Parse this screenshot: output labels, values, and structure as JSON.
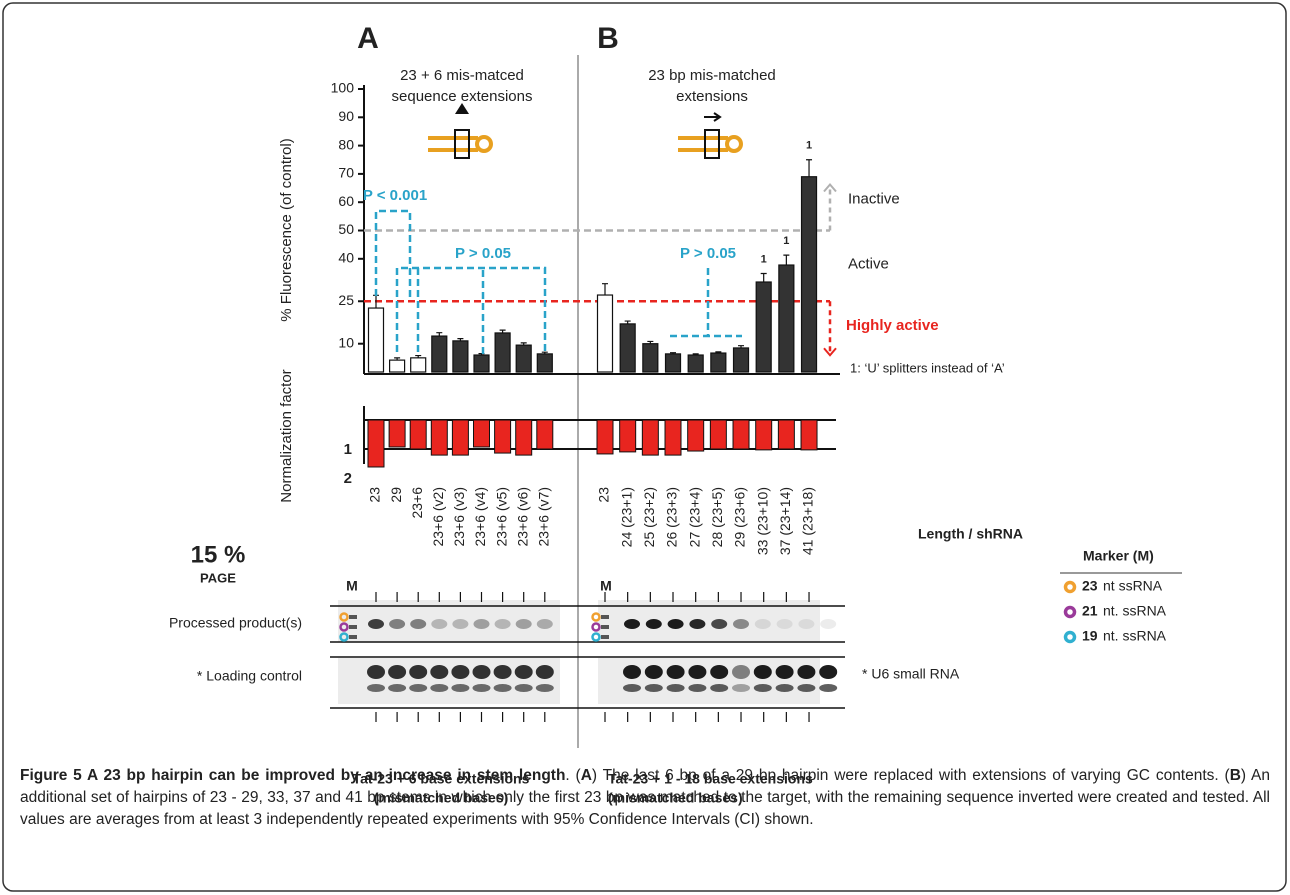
{
  "chart_data": [
    {
      "type": "bar",
      "panel": "A",
      "heading": [
        "23 + 6 mis-matced",
        "sequence extensions"
      ],
      "ylabel": "% Fluorescence (of control)",
      "categories": [
        "23",
        "29",
        "23+6",
        "23+6 (v2)",
        "23+6 (v3)",
        "23+6 (v4)",
        "23+6 (v5)",
        "23+6 (v6)",
        "23+6 (v7)"
      ],
      "values": [
        22.6,
        4.2,
        5,
        12.7,
        11,
        6,
        13.8,
        9.5,
        6.4
      ],
      "errors": [
        4.5,
        0.8,
        0.8,
        1.2,
        0.8,
        0.5,
        1,
        0.8,
        0.6
      ],
      "colors": [
        "#ffffff",
        "#ffffff",
        "#ffffff",
        "#333333",
        "#333333",
        "#333333",
        "#333333",
        "#333333",
        "#333333"
      ],
      "ylim": [
        0,
        100
      ],
      "yticks": [
        10,
        25,
        40,
        50,
        60,
        70,
        80,
        90,
        100
      ],
      "thresholds": [
        {
          "value": 50,
          "color": "#b0b0b0",
          "above": "Inactive",
          "below": "Active"
        },
        {
          "value": 25,
          "color": "#e8251f",
          "below": "Highly active"
        }
      ],
      "annotations": [
        "P < 0.001",
        "P > 0.05"
      ],
      "normalization": {
        "ylabel": "Normalization factor",
        "values": [
          1.62,
          0.93,
          1.0,
          1.21,
          1.21,
          0.93,
          1.14,
          1.21,
          1.0
        ],
        "color": "#e8251f",
        "ylim": [
          0,
          2
        ],
        "yticks": [
          1,
          2
        ],
        "tick_colors": [
          "#e8251f",
          "#222222"
        ]
      },
      "footer": [
        "Tat-23 + 6 base extensions",
        "(mismatched bases)"
      ]
    },
    {
      "type": "bar",
      "panel": "B",
      "heading": [
        "23 bp mis-matched",
        "extensions"
      ],
      "categories": [
        "23",
        "24 (23+1)",
        "25 (23+2)",
        "26 (23+3)",
        "27 (23+4)",
        "28 (23+5)",
        "29 (23+6)",
        "33 (23+10)",
        "37 (23+14)",
        "41 (23+18)"
      ],
      "values": [
        27.2,
        17,
        10,
        6.4,
        6,
        6.7,
        8.5,
        31.8,
        37.8,
        69
      ],
      "errors": [
        4,
        1,
        0.8,
        0.4,
        0.4,
        0.4,
        0.8,
        3,
        3.5,
        6
      ],
      "colors": [
        "#ffffff",
        "#333333",
        "#333333",
        "#333333",
        "#333333",
        "#333333",
        "#333333",
        "#333333",
        "#333333",
        "#333333"
      ],
      "notes": [
        null,
        null,
        null,
        null,
        null,
        null,
        null,
        "1",
        "1",
        "1"
      ],
      "ylim": [
        0,
        100
      ],
      "annotations": [
        "P > 0.05"
      ],
      "footnote": "1: ‘U’ splitters instead of ‘A’",
      "xlabel": "Length / shRNA",
      "normalization": {
        "values": [
          1.17,
          1.1,
          1.21,
          1.21,
          1.07,
          1.0,
          1.0,
          1.03,
          1.0,
          1.03
        ],
        "color": "#e8251f",
        "ylim": [
          0,
          2
        ]
      },
      "footer": [
        "Tat-23 + 1 - 18 base extensions",
        "(mismatched bases)"
      ]
    }
  ],
  "gel": {
    "title": "15 %",
    "subtitle": "PAGE",
    "marker_lane": "M",
    "rows": [
      "Processed product(s)",
      "* Loading control"
    ],
    "right_label": "* U6 small RNA"
  },
  "legend": {
    "title": "Marker (M)",
    "items": [
      {
        "size": "23",
        "text": "nt ssRNA",
        "color": "#f0a030"
      },
      {
        "size": "21",
        "text": "nt. ssRNA",
        "color": "#9a3a9a"
      },
      {
        "size": "19",
        "text": "nt. ssRNA",
        "color": "#30b0d0"
      }
    ]
  },
  "caption": [
    {
      "text": "Figure 5 A 23 bp hairpin can be improved by an increase in stem length",
      "bold": true
    },
    {
      "text": ". ("
    },
    {
      "text": "A",
      "bold": true
    },
    {
      "text": ") The last 6 bp of a 29 bp hairpin were replaced with extensions of varying GC contents. ("
    },
    {
      "text": "B",
      "bold": true
    },
    {
      "text": ") An additional set of hairpins of 23 - 29, 33, 37 and 41 bp stems in which only the first 23 bp was matched to the target, with the remaining sequence inverted were created and tested. All values are averages from at least 3 independently repeated experiments with 95% Confidence Intervals (CI) shown."
    }
  ]
}
